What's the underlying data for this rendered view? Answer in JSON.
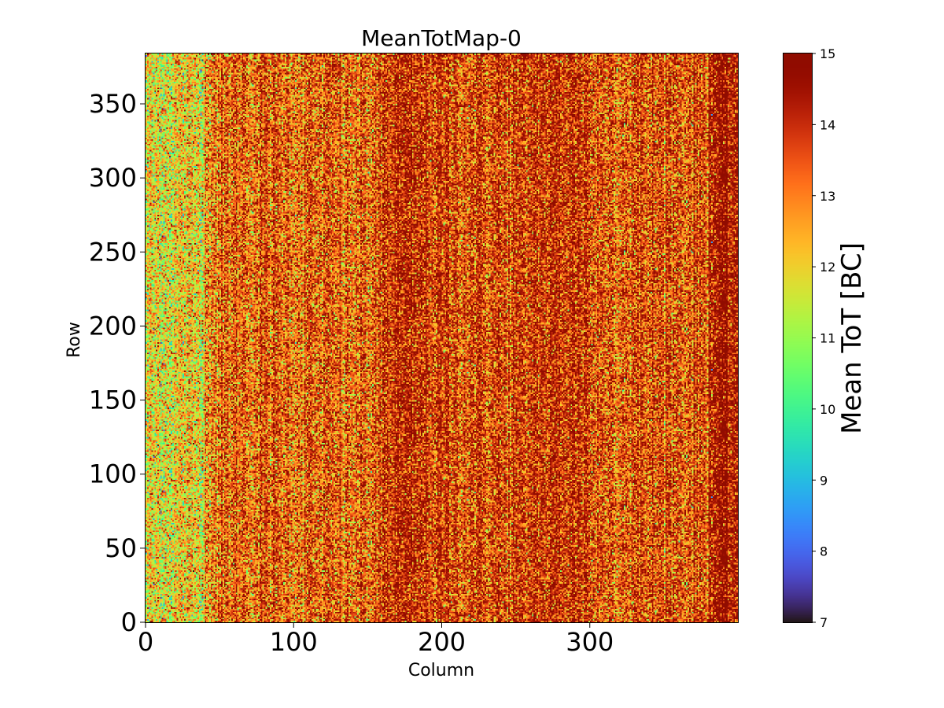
{
  "chart_data": {
    "type": "heatmap",
    "title": "MeanTotMap-0",
    "xlabel": "Column",
    "ylabel": "Row",
    "colorbar_label": "Mean ToT [BC]",
    "xlim": [
      0,
      400
    ],
    "ylim": [
      0,
      384
    ],
    "x_ticks": [
      0,
      100,
      200,
      300
    ],
    "y_ticks": [
      0,
      50,
      100,
      150,
      200,
      250,
      300,
      350
    ],
    "colorbar_range": [
      7,
      15
    ],
    "colorbar_ticks": [
      7,
      8,
      9,
      10,
      11,
      12,
      13,
      14,
      15
    ],
    "colormap": "turbo",
    "grid": false,
    "columns": 400,
    "rows": 384,
    "column_profile": {
      "column_groups": [
        "0-19",
        "20-39",
        "40-59",
        "60-99",
        "100-159",
        "160-199",
        "200-259",
        "260-299",
        "300-379",
        "380-399"
      ],
      "approx_mean_tot": [
        11.8,
        12.0,
        13.2,
        13.4,
        13.3,
        14.0,
        13.7,
        14.0,
        13.6,
        14.5
      ]
    }
  }
}
